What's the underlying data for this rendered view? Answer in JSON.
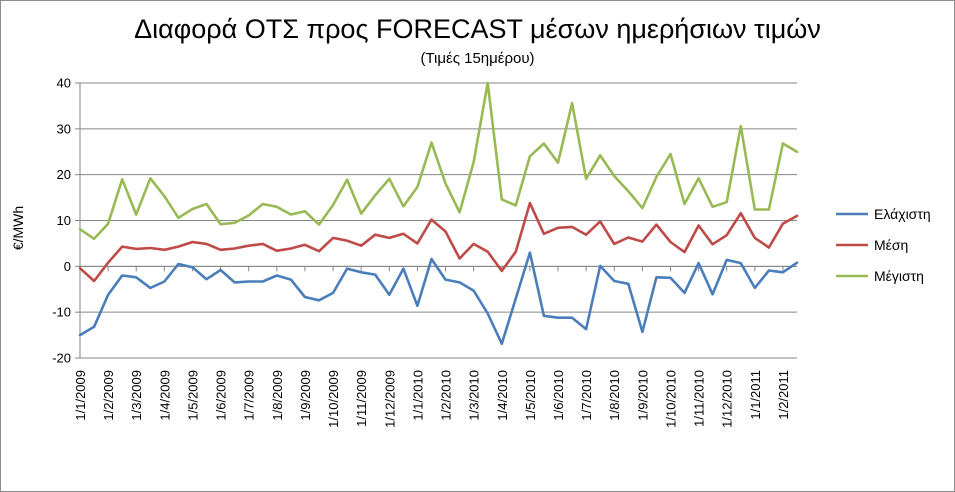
{
  "chart_data": {
    "type": "line",
    "title": "Διαφορά ΟΤΣ προς FORECAST μέσων ημερήσιων τιμών",
    "subtitle": "(Τιμές 15ημέρου)",
    "ylabel": "€/MWh",
    "xlabel": "",
    "ylim": [
      -20,
      40
    ],
    "yticks": [
      -20,
      -10,
      0,
      10,
      20,
      30,
      40
    ],
    "grid": "horizontal",
    "legend_position": "right",
    "x_tick_labels": [
      "1/1/2009",
      "1/2/2009",
      "1/3/2009",
      "1/4/2009",
      "1/5/2009",
      "1/6/2009",
      "1/7/2009",
      "1/8/2009",
      "1/9/2009",
      "1/10/2009",
      "1/11/2009",
      "1/12/2009",
      "1/1/2010",
      "1/2/2010",
      "1/3/2010",
      "1/4/2010",
      "1/5/2010",
      "1/6/2010",
      "1/7/2010",
      "1/8/2010",
      "1/9/2010",
      "1/10/2010",
      "1/11/2010",
      "1/12/2010",
      "1/1/2011",
      "1/2/2011"
    ],
    "series": [
      {
        "name": "Ελάχιστη",
        "color": "#4a7ebb",
        "values": [
          -15,
          -13.2,
          -6.2,
          -2,
          -2.4,
          -4.7,
          -3.3,
          0.5,
          -0.2,
          -2.8,
          -0.8,
          -3.5,
          -3.3,
          -3.3,
          -2,
          -2.9,
          -6.7,
          -7.4,
          -5.8,
          -0.5,
          -1.3,
          -1.8,
          -6.2,
          -0.5,
          -8.6,
          1.6,
          -2.9,
          -3.5,
          -5.3,
          -10.3,
          -16.9,
          -7,
          3,
          -10.8,
          -11.2,
          -11.2,
          -13.7,
          0.1,
          -3.2,
          -3.8,
          -14.3,
          -2.4,
          -2.5,
          -5.8,
          0.7,
          -6.1,
          1.4,
          0.7,
          -4.7,
          -0.9,
          -1.3,
          0.8
        ]
      },
      {
        "name": "Μέση",
        "color": "#be4b48",
        "values": [
          -0.4,
          -3.2,
          0.8,
          4.3,
          3.8,
          4,
          3.6,
          4.3,
          5.3,
          4.9,
          3.6,
          3.9,
          4.5,
          4.9,
          3.4,
          3.9,
          4.7,
          3.3,
          6.2,
          5.6,
          4.5,
          6.9,
          6.2,
          7.1,
          5,
          10.2,
          7.6,
          1.7,
          4.9,
          3.2,
          -1,
          3.2,
          13.8,
          7.1,
          8.4,
          8.6,
          6.9,
          9.8,
          4.9,
          6.3,
          5.4,
          9.1,
          5.3,
          3.1,
          8.9,
          4.8,
          6.8,
          11.6,
          6.2,
          4.1,
          9.3,
          11
        ]
      },
      {
        "name": "Μέγιστη",
        "color": "#98b954",
        "values": [
          8.1,
          6,
          9.3,
          19,
          11.3,
          19.2,
          15.3,
          10.6,
          12.5,
          13.6,
          9.2,
          9.5,
          11.1,
          13.6,
          13,
          11.3,
          12,
          9.1,
          13.4,
          18.9,
          11.5,
          15.5,
          19.1,
          13.1,
          17.3,
          27,
          18.1,
          11.8,
          22.7,
          40,
          14.6,
          13.3,
          24,
          26.8,
          22.6,
          35.6,
          19.1,
          24.2,
          19.7,
          16.4,
          12.7,
          19.5,
          24.5,
          13.6,
          19.2,
          13,
          14,
          30.6,
          12.4,
          12.4,
          26.8,
          25
        ]
      }
    ]
  }
}
